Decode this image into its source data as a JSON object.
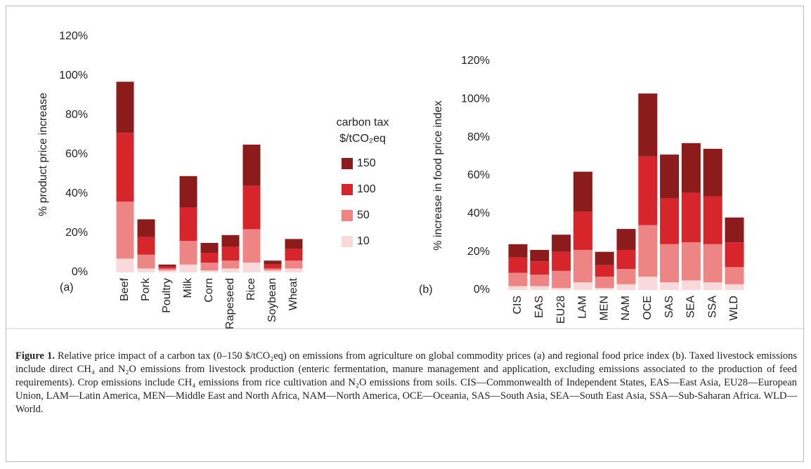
{
  "charts": [
    {
      "chart_data": {
        "type": "stacked_bar",
        "panel_label": "(a)",
        "y_label": "% product price increase",
        "categories": [
          "Beef",
          "Pork",
          "Poultry",
          "Milk",
          "Corn",
          "Rapeseed",
          "Rice",
          "Soybean",
          "Wheat"
        ],
        "series": [
          {
            "name": "10",
            "color": "#f9d9d9",
            "values": [
              7,
              2,
              1,
              4,
              1,
              2,
              5,
              1,
              2
            ]
          },
          {
            "name": "50",
            "color": "#ee8585",
            "values": [
              29,
              7,
              1,
              12,
              4,
              4,
              17,
              1,
              4
            ]
          },
          {
            "name": "100",
            "color": "#d7262b",
            "values": [
              35,
              9,
              1,
              17,
              5,
              7,
              22,
              2,
              6
            ]
          },
          {
            "name": "150",
            "color": "#8c1c1c",
            "values": [
              26,
              9,
              1,
              16,
              5,
              6,
              21,
              2,
              5
            ]
          }
        ],
        "legend_title": [
          "carbon tax",
          "$/tCO₂eq"
        ],
        "ylim": [
          0,
          120
        ],
        "yticks": [
          {
            "value": 0,
            "label": "0%"
          },
          {
            "value": 20,
            "label": "20%"
          },
          {
            "value": 40,
            "label": "40%"
          },
          {
            "value": 60,
            "label": "60%"
          },
          {
            "value": 80,
            "label": "80%"
          },
          {
            "value": 100,
            "label": "100%"
          },
          {
            "value": 120,
            "label": "120%"
          }
        ]
      }
    },
    {
      "chart_data": {
        "type": "stacked_bar",
        "panel_label": "(b)",
        "y_label": "% increase in food price index",
        "categories": [
          "CIS",
          "EAS",
          "EU28",
          "LAM",
          "MEN",
          "NAM",
          "OCE",
          "SAS",
          "SEA",
          "SSA",
          "WLD"
        ],
        "series": [
          {
            "name": "10",
            "color": "#f9d9d9",
            "values": [
              2,
              2,
              1,
              4,
              1,
              3,
              7,
              4,
              5,
              4,
              3
            ]
          },
          {
            "name": "50",
            "color": "#ee8585",
            "values": [
              7,
              6,
              9,
              17,
              6,
              8,
              27,
              20,
              20,
              20,
              9
            ]
          },
          {
            "name": "100",
            "color": "#d7262b",
            "values": [
              8,
              7,
              10,
              20,
              6,
              10,
              36,
              24,
              26,
              25,
              13
            ]
          },
          {
            "name": "150",
            "color": "#8c1c1c",
            "values": [
              7,
              6,
              9,
              21,
              7,
              11,
              33,
              23,
              26,
              25,
              13
            ]
          }
        ],
        "ylim": [
          0,
          120
        ],
        "yticks": [
          {
            "value": 0,
            "label": "0%"
          },
          {
            "value": 20,
            "label": "20%"
          },
          {
            "value": 40,
            "label": "40%"
          },
          {
            "value": 60,
            "label": "60%"
          },
          {
            "value": 80,
            "label": "80%"
          },
          {
            "value": 100,
            "label": "100%"
          },
          {
            "value": 120,
            "label": "120%"
          }
        ]
      }
    }
  ],
  "caption": {
    "label": "Figure 1.",
    "text": "Relative price impact of a carbon tax (0–150 $/tCO₂eq) on emissions from agriculture on global commodity prices (a) and regional food price index (b). Taxed livestock emissions include direct CH₄ and N₂O emissions from livestock production (enteric fermentation, manure management and application, excluding emissions associated to the production of feed requirements). Crop emissions include CH₄ emissions from rice cultivation and N₂O emissions from soils. CIS—Commonwealth of Independent States, EAS—East Asia, EU28—European Union, LAM—Latin America, MEN—Middle East and North Africa, NAM—North America, OCE—Oceania, SAS—South Asia, SEA—South East Asia, SSA—Sub-Saharan Africa. WLD—World."
  }
}
